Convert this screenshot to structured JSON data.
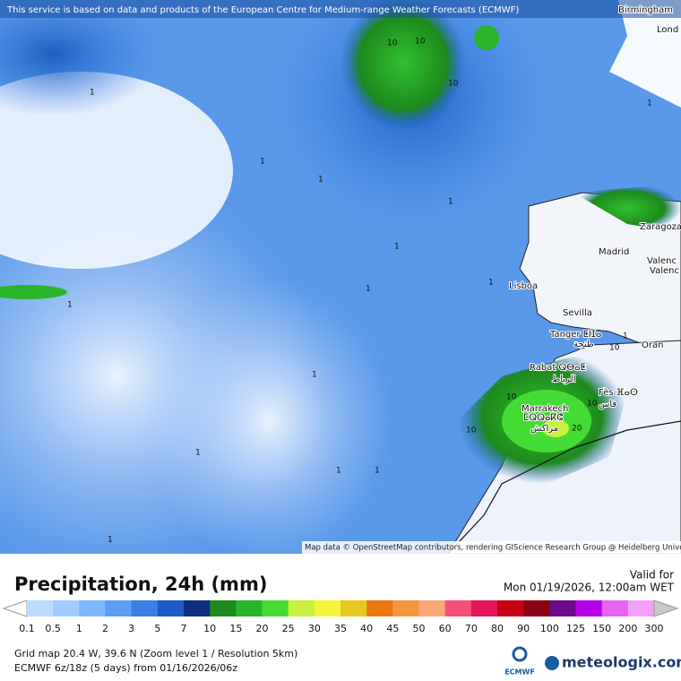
{
  "notice": "This service is based on data and products of the European Centre for Medium-range Weather Forecasts (ECMWF)",
  "attribution": "Map data © OpenStreetMap contributors, rendering GIScience Research Group @ Heidelberg University",
  "cities": [
    "Birmingham",
    "Lond",
    "Zaragoza",
    "Madrid",
    "Valenc",
    "Valenc",
    "Lisboa",
    "Sevilla",
    "Tanger ⵟⵏⵊⴰ",
    "طنجة",
    "Oran",
    "Rabat ⵕⴱⴰⵟ",
    "الرباط",
    "Fès ⴼⴰⵙ",
    "فاس",
    "Marrakech",
    "ⵎⵕⵕⴰⴽⵛ",
    "مراكش"
  ],
  "isolines": [
    "10",
    "10",
    "10",
    "1",
    "1",
    "1",
    "1",
    "1",
    "1",
    "1",
    "1",
    "1",
    "1",
    "1",
    "1",
    "1",
    "10",
    "10",
    "10",
    "10",
    "20",
    "1",
    "1"
  ],
  "title": "Precipitation, 24h (mm)",
  "valid_label": "Valid for",
  "valid_time": "Mon 01/19/2026, 12:00am WET",
  "legend": {
    "labels": [
      0.1,
      0.5,
      1,
      2,
      3,
      5,
      7,
      10,
      15,
      20,
      25,
      30,
      35,
      40,
      45,
      50,
      60,
      70,
      80,
      90,
      100,
      125,
      150,
      200,
      300
    ],
    "colors": [
      "#ffffff",
      "#bcdcff",
      "#9fcbff",
      "#7fb6ff",
      "#5c9cf5",
      "#3a7ee6",
      "#1d5cc8",
      "#0c2f80",
      "#1e8a1e",
      "#2ab42a",
      "#44dc34",
      "#c8f03c",
      "#f5f53c",
      "#e6c81e",
      "#f07814",
      "#f5963c",
      "#faa878",
      "#f5507a",
      "#e6145a",
      "#c80014",
      "#8c0014",
      "#6e0a8c",
      "#b400e6",
      "#e664f0",
      "#f0a0f5",
      "#f5d2fa",
      "#c8c8c8"
    ]
  },
  "grid_info": "Grid map 20.4 W, 39.6 N (Zoom level 1 / Resolution 5km)",
  "model_info": "ECMWF 6z/18z (5 days) from 01/16/2026/06z",
  "ecmwf": "ECMWF",
  "brand": "meteologix.com"
}
